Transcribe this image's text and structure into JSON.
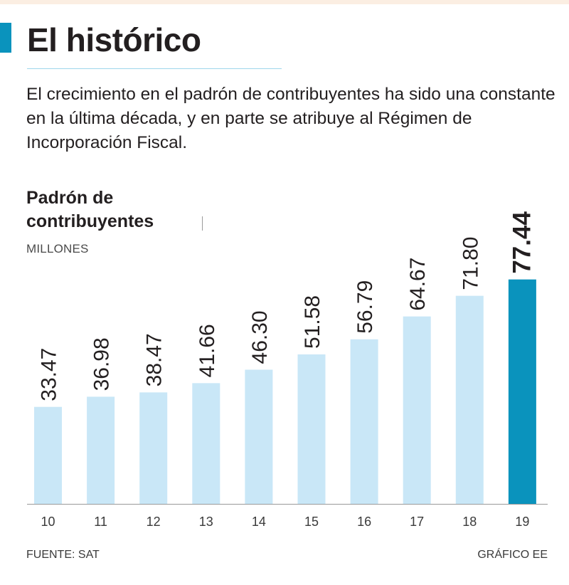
{
  "header": {
    "title": "El histórico",
    "subtitle": "El crecimiento en el padrón de contribuyentes ha sido una constante en la última década, y en parte se atribuye al Régimen de Incorporación Fiscal."
  },
  "legend": {
    "title_line1": "Padrón de",
    "title_line2": "contribuyentes",
    "unit": "MILLONES"
  },
  "chart_data": {
    "type": "bar",
    "title": "Padrón de contribuyentes",
    "ylabel": "MILLONES",
    "categories": [
      "10",
      "11",
      "12",
      "13",
      "14",
      "15",
      "16",
      "17",
      "18",
      "19"
    ],
    "values": [
      33.47,
      36.98,
      38.47,
      41.66,
      46.3,
      51.58,
      56.79,
      64.67,
      71.8,
      77.44
    ],
    "value_labels": [
      "33.47",
      "36.98",
      "38.47",
      "41.66",
      "46.30",
      "51.58",
      "56.79",
      "64.67",
      "71.80",
      "77.44"
    ],
    "ylim": [
      0,
      80
    ],
    "grid": false,
    "highlight_index": 9
  },
  "colors": {
    "accent": "#0a93bd",
    "bar": "#c9e7f7",
    "bar_highlight": "#0a93bd",
    "axis": "#9a9a9a"
  },
  "footer": {
    "source": "FUENTE: SAT",
    "credit": "GRÁFICO EE"
  }
}
